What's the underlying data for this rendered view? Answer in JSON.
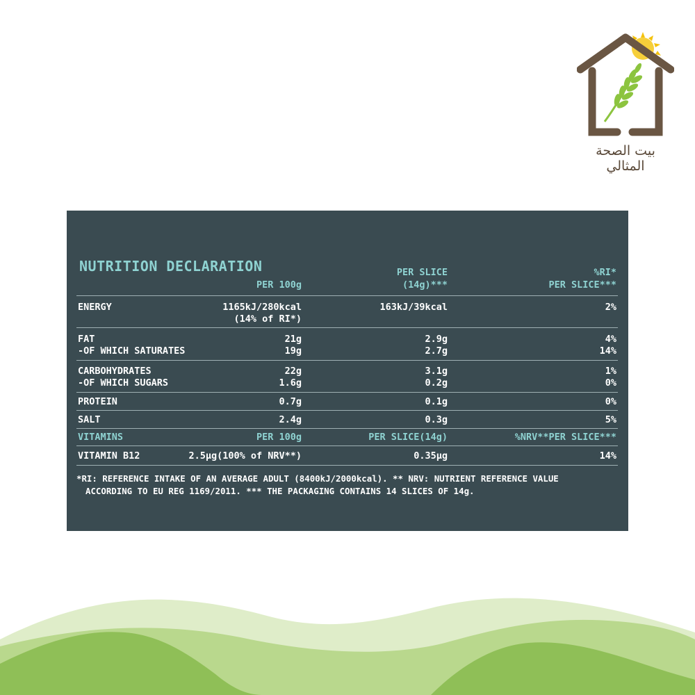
{
  "logo": {
    "text": "بيت الصحة المثالي",
    "colors": {
      "roof": "#6a5643",
      "wheat": "#8cc43f",
      "sun": "#f4c20d"
    }
  },
  "panel": {
    "title": "NUTRITION DECLARATION",
    "headers": {
      "per100": "PER 100g",
      "perslice_line1": "PER SLICE",
      "perslice_line2": "(14g)***",
      "ri_line1": "%RI*",
      "ri_line2": "PER SLICE***"
    },
    "rows": {
      "energy": {
        "label": "ENERGY",
        "per100_line1": "1165kJ/280kcal",
        "per100_line2": "(14% of RI*)",
        "slice": "163kJ/39kcal",
        "ri": "2%"
      },
      "fat": {
        "label": "FAT",
        "per100": "21g",
        "slice": "2.9g",
        "ri": "4%"
      },
      "saturates": {
        "label": "-OF WHICH SATURATES",
        "per100": "19g",
        "slice": "2.7g",
        "ri": "14%"
      },
      "carbs": {
        "label": "CARBOHYDRATES",
        "per100": "22g",
        "slice": "3.1g",
        "ri": "1%"
      },
      "sugars": {
        "label": "-OF WHICH SUGARS",
        "per100": "1.6g",
        "slice": "0.2g",
        "ri": "0%"
      },
      "protein": {
        "label": "PROTEIN",
        "per100": "0.7g",
        "slice": "0.1g",
        "ri": "0%"
      },
      "salt": {
        "label": "SALT",
        "per100": "2.4g",
        "slice": "0.3g",
        "ri": "5%"
      }
    },
    "vitamins_header": {
      "label": "VITAMINS",
      "per100": "PER 100g",
      "slice": "PER SLICE(14g)",
      "nrv": "%NRV**PER SLICE***"
    },
    "vitamin_b12": {
      "label": "VITAMIN B12",
      "per100": "2.5µg(100% of NRV**)",
      "slice": "0.35µg",
      "nrv": "14%"
    },
    "footnote_line1": "*RI: REFERENCE INTAKE OF AN AVERAGE ADULT (8400kJ/2000kcal). ** NRV: NUTRIENT REFERENCE VALUE",
    "footnote_line2": "ACCORDING TO EU REG 1169/2011. *** THE PACKAGING CONTAINS 14 SLICES OF 14g."
  },
  "colors": {
    "panel_bg": "#3a4b51",
    "accent": "#8fd3d2",
    "wave_light": "#dfedc9",
    "wave_mid": "#b9d88d",
    "wave_dark": "#8fbf57"
  }
}
